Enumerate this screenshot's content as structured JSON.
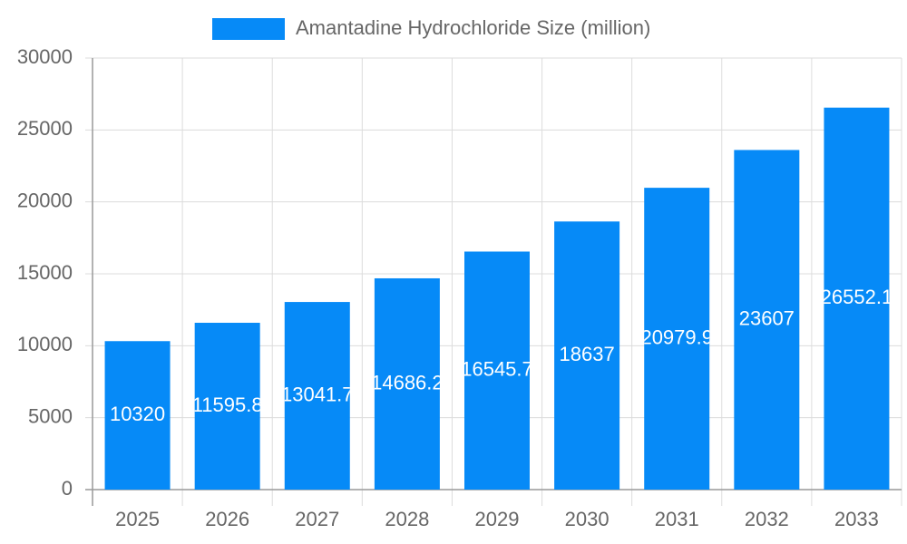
{
  "chart_data": {
    "type": "bar",
    "categories": [
      "2025",
      "2026",
      "2027",
      "2028",
      "2029",
      "2030",
      "2031",
      "2032",
      "2033"
    ],
    "series": [
      {
        "name": "Amantadine Hydrochloride Size (million)",
        "color": "#068af7",
        "values": [
          10320,
          11595.8,
          13041.7,
          14686.2,
          16545.7,
          18637,
          20979.9,
          23607,
          26552.1
        ]
      }
    ],
    "ylim": [
      0,
      30000
    ],
    "yticks": [
      0,
      5000,
      10000,
      15000,
      20000,
      25000,
      30000
    ],
    "grid": true,
    "legend": "top"
  }
}
